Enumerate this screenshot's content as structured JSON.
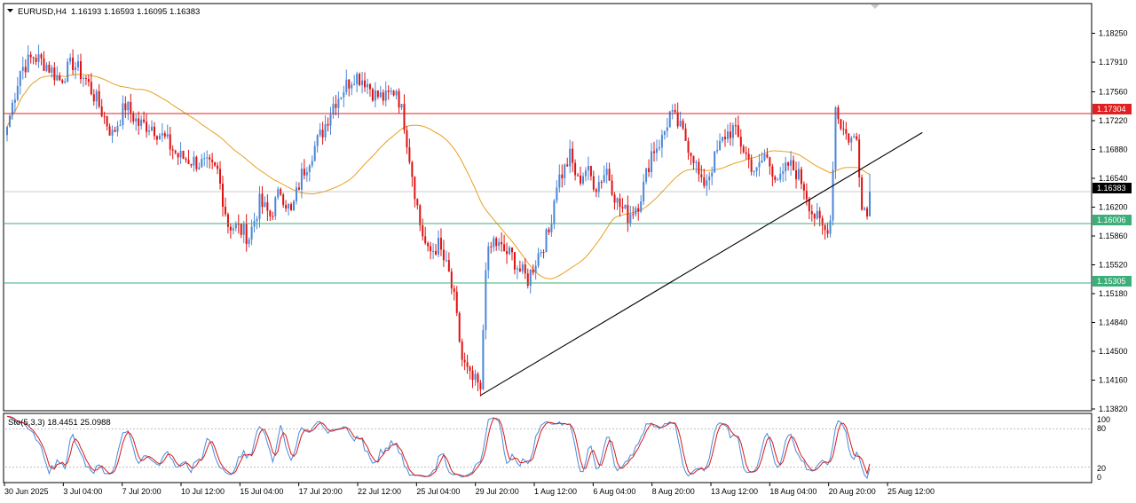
{
  "header": {
    "symbol": "EURUSD,H4",
    "ohlc": "1.16193 1.16593 1.16095 1.16383",
    "menu_arrow_icon": "triangle-down-icon"
  },
  "stochastic": {
    "label": "Sto(5,3,3) 18.4451 25.0988",
    "levels": [
      "100",
      "80",
      "20",
      "0"
    ],
    "main_color": "#4a8ad8",
    "signal_color": "#d7191c"
  },
  "colors": {
    "bull": "#4a86d8",
    "bear": "#e01010",
    "ma": "#e8a020",
    "resistance": "#e02020",
    "support": "#3cae78",
    "trendline": "#000000",
    "current": "#9a9a9a"
  },
  "levels": {
    "resistance": "1.17304",
    "support_upper": "1.16006",
    "support_lower": "1.15305",
    "current": "1.16383"
  },
  "chart_data": {
    "type": "candlestick",
    "symbol": "EURUSD",
    "timeframe": "H4",
    "ylim": [
      1.1382,
      1.1858
    ],
    "y_ticks": [
      "1.18250",
      "1.17910",
      "1.17560",
      "1.17220",
      "1.16880",
      "1.16540",
      "1.16200",
      "1.15860",
      "1.15520",
      "1.15180",
      "1.14840",
      "1.14500",
      "1.14160",
      "1.13820"
    ],
    "x_ticks": [
      "30 Jun 2025",
      "3 Jul 04:00",
      "7 Jul 20:00",
      "10 Jul 12:00",
      "15 Jul 04:00",
      "17 Jul 20:00",
      "22 Jul 12:00",
      "25 Jul 04:00",
      "29 Jul 20:00",
      "1 Aug 12:00",
      "6 Aug 04:00",
      "8 Aug 20:00",
      "13 Aug 12:00",
      "18 Aug 04:00",
      "20 Aug 20:00",
      "25 Aug 12:00"
    ],
    "close_anchors": [
      [
        0,
        1.1715
      ],
      [
        5,
        1.1782
      ],
      [
        10,
        1.1798
      ],
      [
        15,
        1.1788
      ],
      [
        20,
        1.177
      ],
      [
        25,
        1.179
      ],
      [
        30,
        1.177
      ],
      [
        35,
        1.174
      ],
      [
        40,
        1.1705
      ],
      [
        45,
        1.174
      ],
      [
        50,
        1.1718
      ],
      [
        55,
        1.1716
      ],
      [
        60,
        1.17
      ],
      [
        65,
        1.168
      ],
      [
        70,
        1.1675
      ],
      [
        75,
        1.167
      ],
      [
        80,
        1.1662
      ],
      [
        84,
        1.16
      ],
      [
        88,
        1.1595
      ],
      [
        92,
        1.1585
      ],
      [
        96,
        1.1625
      ],
      [
        100,
        1.161
      ],
      [
        104,
        1.164
      ],
      [
        108,
        1.1612
      ],
      [
        112,
        1.1658
      ],
      [
        116,
        1.1685
      ],
      [
        120,
        1.171
      ],
      [
        124,
        1.1742
      ],
      [
        128,
        1.176
      ],
      [
        132,
        1.1776
      ],
      [
        136,
        1.177
      ],
      [
        140,
        1.1752
      ],
      [
        144,
        1.1748
      ],
      [
        148,
        1.176
      ],
      [
        151,
        1.172
      ],
      [
        154,
        1.166
      ],
      [
        157,
        1.16
      ],
      [
        160,
        1.1565
      ],
      [
        164,
        1.1575
      ],
      [
        168,
        1.154
      ],
      [
        170,
        1.151
      ],
      [
        173,
        1.144
      ],
      [
        176,
        1.1418
      ],
      [
        179,
        1.141
      ],
      [
        180,
        1.1398
      ],
      [
        182,
        1.1555
      ],
      [
        185,
        1.158
      ],
      [
        188,
        1.157
      ],
      [
        192,
        1.1562
      ],
      [
        195,
        1.1545
      ],
      [
        198,
        1.1535
      ],
      [
        202,
        1.1565
      ],
      [
        206,
        1.159
      ],
      [
        209,
        1.165
      ],
      [
        212,
        1.1665
      ],
      [
        214,
        1.168
      ],
      [
        217,
        1.165
      ],
      [
        220,
        1.1665
      ],
      [
        224,
        1.1645
      ],
      [
        228,
        1.1665
      ],
      [
        232,
        1.1625
      ],
      [
        236,
        1.161
      ],
      [
        240,
        1.1625
      ],
      [
        242,
        1.1645
      ],
      [
        245,
        1.1685
      ],
      [
        249,
        1.17
      ],
      [
        252,
        1.173
      ],
      [
        255,
        1.1718
      ],
      [
        258,
        1.17
      ],
      [
        261,
        1.168
      ],
      [
        264,
        1.1645
      ],
      [
        267,
        1.166
      ],
      [
        270,
        1.1685
      ],
      [
        273,
        1.1705
      ],
      [
        276,
        1.1712
      ],
      [
        279,
        1.1695
      ],
      [
        282,
        1.1675
      ],
      [
        285,
        1.166
      ],
      [
        288,
        1.1682
      ],
      [
        291,
        1.1665
      ],
      [
        294,
        1.165
      ],
      [
        297,
        1.167
      ],
      [
        300,
        1.1662
      ],
      [
        303,
        1.1645
      ],
      [
        306,
        1.1615
      ],
      [
        309,
        1.16
      ],
      [
        311,
        1.1592
      ],
      [
        313,
        1.1605
      ],
      [
        315,
        1.1738
      ],
      [
        317,
        1.1718
      ],
      [
        319,
        1.1705
      ],
      [
        321,
        1.17
      ],
      [
        323,
        1.17
      ],
      [
        325,
        1.1628
      ],
      [
        327,
        1.161
      ],
      [
        328,
        1.1638
      ]
    ],
    "series": [
      {
        "name": "EURUSD,H4",
        "type": "candlestick",
        "count": 329,
        "last": {
          "open": 1.16193,
          "high": 1.16593,
          "low": 1.16095,
          "close": 1.16383
        }
      }
    ],
    "horizontal_lines": [
      1.17304,
      1.16006,
      1.15305,
      1.16383
    ],
    "trendline": {
      "from": [
        180,
        1.1398
      ],
      "to": [
        348,
        1.1708
      ]
    },
    "indicator": {
      "name": "Sto(5,3,3)",
      "main": 18.4451,
      "signal": 25.0988,
      "ylim": [
        0,
        100
      ],
      "levels": [
        20,
        80
      ]
    }
  }
}
